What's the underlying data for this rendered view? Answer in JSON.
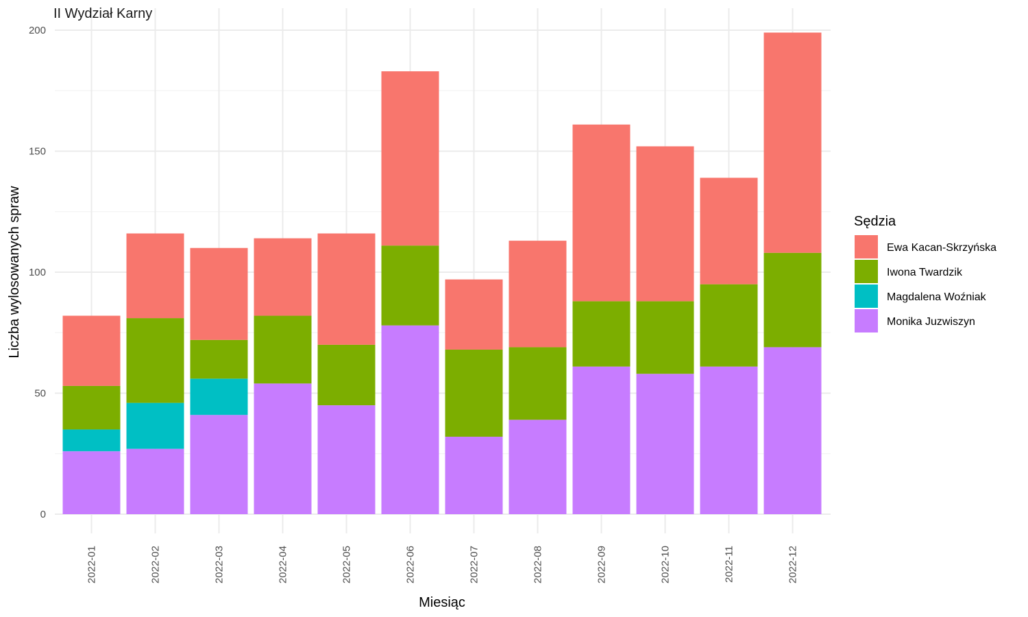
{
  "chart_data": {
    "type": "bar",
    "stacked": true,
    "title": "II Wydział Karny",
    "xlabel": "Miesiąc",
    "ylabel": "Liczba wylosowanych spraw",
    "ylim": [
      0,
      200
    ],
    "yticks": [
      0,
      50,
      100,
      150,
      200
    ],
    "grid": true,
    "legend_position": "right",
    "legend_title": "Sędzia",
    "categories": [
      "2022-01",
      "2022-02",
      "2022-03",
      "2022-04",
      "2022-05",
      "2022-06",
      "2022-07",
      "2022-08",
      "2022-09",
      "2022-10",
      "2022-11",
      "2022-12"
    ],
    "series": [
      {
        "name": "Monika Juzwiszyn",
        "color": "#C77CFF",
        "values": [
          26,
          27,
          41,
          54,
          45,
          78,
          32,
          39,
          61,
          58,
          61,
          69
        ]
      },
      {
        "name": "Magdalena Woźniak",
        "color": "#00BFC4",
        "values": [
          9,
          19,
          15,
          0,
          0,
          0,
          0,
          0,
          0,
          0,
          0,
          0
        ]
      },
      {
        "name": "Iwona Twardzik",
        "color": "#7CAE00",
        "values": [
          18,
          35,
          16,
          28,
          25,
          33,
          36,
          30,
          27,
          30,
          34,
          39
        ]
      },
      {
        "name": "Ewa Kacan-Skrzyńska",
        "color": "#F8766D",
        "values": [
          29,
          35,
          38,
          32,
          46,
          72,
          29,
          44,
          73,
          64,
          44,
          91
        ]
      }
    ],
    "legend_order": [
      "Ewa Kacan-Skrzyńska",
      "Iwona Twardzik",
      "Magdalena Woźniak",
      "Monika Juzwiszyn"
    ]
  }
}
